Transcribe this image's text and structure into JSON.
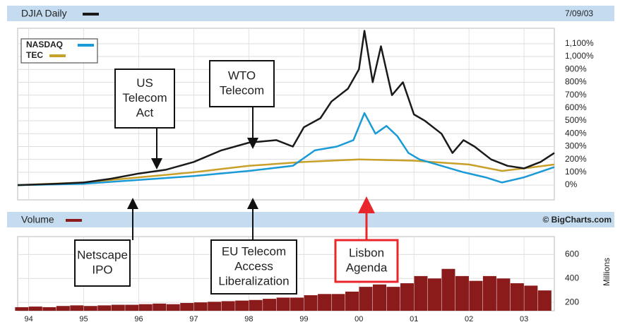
{
  "chart_data": [
    {
      "type": "line",
      "date": "7/09/03",
      "xlim": [
        1993.8,
        2003.55
      ],
      "ylim": [
        -115,
        1220
      ],
      "yticks": [
        {
          "value": 0,
          "label": "0%"
        },
        {
          "value": 100,
          "label": "100%"
        },
        {
          "value": 200,
          "label": "200%"
        },
        {
          "value": 300,
          "label": "300%"
        },
        {
          "value": 400,
          "label": "400%"
        },
        {
          "value": 500,
          "label": "500%"
        },
        {
          "value": 600,
          "label": "600%"
        },
        {
          "value": 700,
          "label": "700%"
        },
        {
          "value": 800,
          "label": "800%"
        },
        {
          "value": 900,
          "label": "900%"
        },
        {
          "value": 1000,
          "label": "1,000%"
        },
        {
          "value": 1100,
          "label": "1,100%"
        }
      ],
      "grid": true,
      "series": [
        {
          "name": "DJIA Daily",
          "color": "#1a1a1a",
          "x": [
            1993.8,
            1994.5,
            1995,
            1995.5,
            1996,
            1996.5,
            1997,
            1997.5,
            1998,
            1998.5,
            1998.8,
            1999,
            1999.3,
            1999.5,
            1999.8,
            2000,
            2000.1,
            2000.25,
            2000.4,
            2000.6,
            2000.8,
            2001,
            2001.2,
            2001.5,
            2001.7,
            2001.9,
            2002.1,
            2002.4,
            2002.7,
            2003,
            2003.3,
            2003.55
          ],
          "values": [
            0,
            10,
            20,
            50,
            90,
            120,
            180,
            270,
            330,
            350,
            300,
            450,
            520,
            650,
            750,
            900,
            1200,
            800,
            1080,
            700,
            800,
            550,
            500,
            400,
            250,
            350,
            300,
            200,
            150,
            130,
            180,
            250
          ]
        },
        {
          "name": "NASDAQ",
          "color": "#1a9ad6",
          "x": [
            1993.8,
            1995,
            1996,
            1997,
            1998,
            1998.8,
            1999.2,
            1999.6,
            1999.9,
            2000.1,
            2000.3,
            2000.5,
            2000.7,
            2000.9,
            2001.1,
            2001.5,
            2001.9,
            2002.3,
            2002.6,
            2003,
            2003.55
          ],
          "values": [
            0,
            10,
            40,
            70,
            110,
            150,
            270,
            300,
            350,
            560,
            400,
            460,
            380,
            250,
            200,
            150,
            100,
            60,
            20,
            60,
            140
          ]
        },
        {
          "name": "TEC",
          "color": "#c8a02a",
          "x": [
            1993.8,
            1995,
            1996,
            1997,
            1998,
            1999,
            2000,
            2001,
            2002,
            2002.6,
            2003,
            2003.55
          ],
          "values": [
            0,
            20,
            60,
            100,
            150,
            180,
            200,
            190,
            160,
            110,
            130,
            160
          ]
        }
      ]
    },
    {
      "type": "bar",
      "y_label": "Millions",
      "source": "© BigCharts.com",
      "xlim": [
        1993.8,
        2003.55
      ],
      "xticks": [
        {
          "value": 1994,
          "label": "94"
        },
        {
          "value": 1995,
          "label": "95"
        },
        {
          "value": 1996,
          "label": "96"
        },
        {
          "value": 1997,
          "label": "97"
        },
        {
          "value": 1998,
          "label": "98"
        },
        {
          "value": 1999,
          "label": "99"
        },
        {
          "value": 2000,
          "label": "00"
        },
        {
          "value": 2001,
          "label": "01"
        },
        {
          "value": 2002,
          "label": "02"
        },
        {
          "value": 2003,
          "label": "03"
        }
      ],
      "ylim": [
        130,
        750
      ],
      "yticks": [
        200,
        400,
        600
      ],
      "series": [
        {
          "name": "Volume",
          "color": "#8b1a1a",
          "x": [
            1993.875,
            1994.125,
            1994.375,
            1994.625,
            1994.875,
            1995.125,
            1995.375,
            1995.625,
            1995.875,
            1996.125,
            1996.375,
            1996.625,
            1996.875,
            1997.125,
            1997.375,
            1997.625,
            1997.875,
            1998.125,
            1998.375,
            1998.625,
            1998.875,
            1999.125,
            1999.375,
            1999.625,
            1999.875,
            2000.125,
            2000.375,
            2000.625,
            2000.875,
            2001.125,
            2001.375,
            2001.625,
            2001.875,
            2002.125,
            2002.375,
            2002.625,
            2002.875,
            2003.125,
            2003.375
          ],
          "values": [
            160,
            165,
            160,
            170,
            175,
            170,
            175,
            180,
            180,
            185,
            190,
            185,
            195,
            200,
            205,
            210,
            215,
            220,
            230,
            240,
            240,
            260,
            270,
            270,
            290,
            330,
            350,
            330,
            360,
            420,
            400,
            480,
            420,
            380,
            420,
            400,
            360,
            340,
            300
          ]
        }
      ]
    }
  ],
  "annotations": [
    {
      "lines": [
        "US",
        "Telecom",
        "Act"
      ]
    },
    {
      "lines": [
        "WTO",
        "Telecom"
      ]
    },
    {
      "lines": [
        "Netscape",
        "IPO"
      ]
    },
    {
      "lines": [
        "EU Telecom",
        "Access",
        "Liberalization"
      ]
    },
    {
      "lines": [
        "Lisbon",
        "Agenda"
      ]
    }
  ]
}
